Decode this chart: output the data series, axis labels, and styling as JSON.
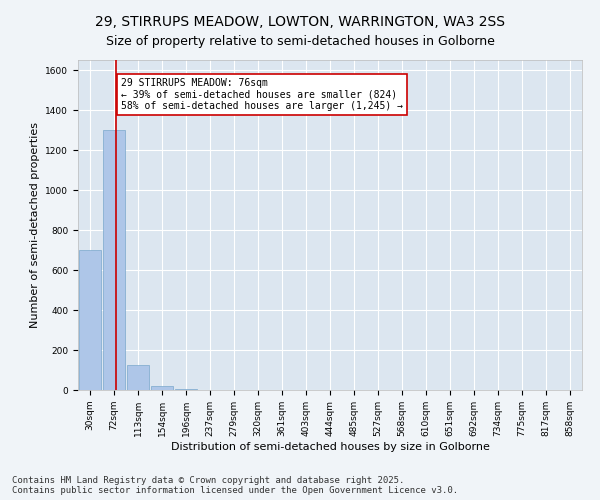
{
  "title": "29, STIRRUPS MEADOW, LOWTON, WARRINGTON, WA3 2SS",
  "subtitle": "Size of property relative to semi-detached houses in Golborne",
  "xlabel": "Distribution of semi-detached houses by size in Golborne",
  "ylabel": "Number of semi-detached properties",
  "categories": [
    "30sqm",
    "72sqm",
    "113sqm",
    "154sqm",
    "196sqm",
    "237sqm",
    "279sqm",
    "320sqm",
    "361sqm",
    "403sqm",
    "444sqm",
    "485sqm",
    "527sqm",
    "568sqm",
    "610sqm",
    "651sqm",
    "692sqm",
    "734sqm",
    "775sqm",
    "817sqm",
    "858sqm"
  ],
  "values": [
    700,
    1300,
    125,
    20,
    5,
    0,
    0,
    0,
    0,
    0,
    0,
    0,
    0,
    0,
    0,
    0,
    0,
    0,
    0,
    0,
    0
  ],
  "bar_color": "#aec6e8",
  "bar_edge_color": "#7aa8cc",
  "property_line_x": 1.08,
  "annotation_text": "29 STIRRUPS MEADOW: 76sqm\n← 39% of semi-detached houses are smaller (824)\n58% of semi-detached houses are larger (1,245) →",
  "annotation_box_color": "#ffffff",
  "annotation_box_edge_color": "#cc0000",
  "property_line_color": "#cc0000",
  "ylim": [
    0,
    1650
  ],
  "yticks": [
    0,
    200,
    400,
    600,
    800,
    1000,
    1200,
    1400,
    1600
  ],
  "background_color": "#dce6f0",
  "grid_color": "#ffffff",
  "footer_line1": "Contains HM Land Registry data © Crown copyright and database right 2025.",
  "footer_line2": "Contains public sector information licensed under the Open Government Licence v3.0.",
  "title_fontsize": 10,
  "subtitle_fontsize": 9,
  "annotation_fontsize": 7,
  "footer_fontsize": 6.5,
  "ylabel_fontsize": 8,
  "xlabel_fontsize": 8,
  "tick_fontsize": 6.5
}
